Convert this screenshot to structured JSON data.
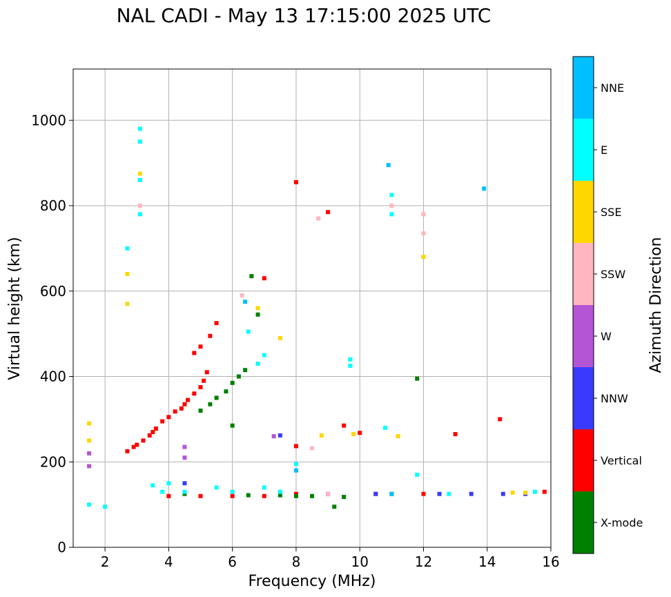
{
  "chart_data": {
    "type": "scatter",
    "title": "NAL CADI - May 13 17:15:00 2025 UTC",
    "xlabel": "Frequency (MHz)",
    "ylabel": "Virtual height (km)",
    "xlim": [
      1,
      16
    ],
    "ylim": [
      0,
      1120
    ],
    "xticks": [
      2,
      4,
      6,
      8,
      10,
      12,
      14,
      16
    ],
    "yticks": [
      0,
      200,
      400,
      600,
      800,
      1000
    ],
    "grid": true,
    "colorbar": {
      "label": "Azimuth Direction",
      "categories": [
        {
          "name": "X-mode",
          "color": "#008000"
        },
        {
          "name": "Vertical",
          "color": "#ff0000"
        },
        {
          "name": "NNW",
          "color": "#3a3aff"
        },
        {
          "name": "W",
          "color": "#b455d6"
        },
        {
          "name": "SSW",
          "color": "#ffb6c1"
        },
        {
          "name": "SSE",
          "color": "#ffd700"
        },
        {
          "name": "E",
          "color": "#00ffff"
        },
        {
          "name": "NNE",
          "color": "#00bfff"
        }
      ]
    },
    "series": [
      {
        "name": "Vertical",
        "points": [
          [
            2.7,
            225
          ],
          [
            2.9,
            235
          ],
          [
            3.0,
            240
          ],
          [
            3.2,
            250
          ],
          [
            3.4,
            262
          ],
          [
            3.5,
            270
          ],
          [
            3.6,
            278
          ],
          [
            3.8,
            295
          ],
          [
            4.0,
            305
          ],
          [
            4.2,
            318
          ],
          [
            4.4,
            325
          ],
          [
            4.5,
            335
          ],
          [
            4.6,
            345
          ],
          [
            4.8,
            360
          ],
          [
            5.0,
            375
          ],
          [
            5.1,
            390
          ],
          [
            5.2,
            410
          ],
          [
            4.8,
            455
          ],
          [
            5.0,
            470
          ],
          [
            5.3,
            495
          ],
          [
            5.5,
            525
          ],
          [
            4.0,
            120
          ],
          [
            5.0,
            120
          ],
          [
            6.0,
            120
          ],
          [
            7.0,
            120
          ],
          [
            8.0,
            125
          ],
          [
            10.5,
            125
          ],
          [
            12.0,
            125
          ],
          [
            13.0,
            265
          ],
          [
            14.4,
            300
          ],
          [
            15.8,
            130
          ],
          [
            9.0,
            785
          ],
          [
            8.0,
            855
          ],
          [
            7.0,
            630
          ],
          [
            9.5,
            285
          ],
          [
            8.0,
            237
          ],
          [
            10.0,
            268
          ]
        ]
      },
      {
        "name": "X-mode",
        "points": [
          [
            5.0,
            320
          ],
          [
            5.3,
            335
          ],
          [
            5.5,
            350
          ],
          [
            5.8,
            365
          ],
          [
            6.0,
            385
          ],
          [
            6.2,
            400
          ],
          [
            6.4,
            415
          ],
          [
            6.6,
            635
          ],
          [
            6.8,
            545
          ],
          [
            4.5,
            125
          ],
          [
            6.5,
            122
          ],
          [
            7.5,
            122
          ],
          [
            8.5,
            120
          ],
          [
            9.5,
            118
          ],
          [
            11.0,
            125
          ],
          [
            6.0,
            285
          ],
          [
            9.2,
            95
          ],
          [
            11.8,
            395
          ],
          [
            8.0,
            120
          ],
          [
            9.0,
            125
          ]
        ]
      },
      {
        "name": "NNW",
        "points": [
          [
            7.5,
            262
          ],
          [
            10.5,
            125
          ],
          [
            12.5,
            125
          ],
          [
            13.5,
            125
          ],
          [
            14.5,
            125
          ],
          [
            15.2,
            125
          ],
          [
            9.0,
            125
          ],
          [
            4.5,
            150
          ]
        ]
      },
      {
        "name": "W",
        "points": [
          [
            1.5,
            190
          ],
          [
            1.5,
            220
          ],
          [
            4.5,
            210
          ],
          [
            4.5,
            235
          ],
          [
            7.3,
            260
          ]
        ]
      },
      {
        "name": "SSW",
        "points": [
          [
            8.7,
            770
          ],
          [
            12.0,
            780
          ],
          [
            12.0,
            735
          ],
          [
            6.3,
            590
          ],
          [
            3.1,
            800
          ],
          [
            9.0,
            125
          ],
          [
            11.0,
            800
          ],
          [
            8.5,
            232
          ]
        ]
      },
      {
        "name": "SSE",
        "points": [
          [
            1.5,
            250
          ],
          [
            1.5,
            290
          ],
          [
            2.7,
            570
          ],
          [
            2.7,
            640
          ],
          [
            3.1,
            875
          ],
          [
            12.0,
            680
          ],
          [
            11.2,
            260
          ],
          [
            14.8,
            128
          ],
          [
            15.2,
            128
          ],
          [
            6.8,
            560
          ],
          [
            7.5,
            490
          ],
          [
            8.8,
            262
          ],
          [
            9.8,
            265
          ]
        ]
      },
      {
        "name": "E",
        "points": [
          [
            1.5,
            100
          ],
          [
            2.0,
            95
          ],
          [
            3.1,
            780
          ],
          [
            3.1,
            860
          ],
          [
            3.1,
            950
          ],
          [
            3.1,
            980
          ],
          [
            3.5,
            145
          ],
          [
            3.8,
            130
          ],
          [
            4.0,
            150
          ],
          [
            4.5,
            130
          ],
          [
            5.5,
            140
          ],
          [
            6.0,
            130
          ],
          [
            7.0,
            140
          ],
          [
            7.5,
            130
          ],
          [
            9.7,
            440
          ],
          [
            9.7,
            425
          ],
          [
            11.0,
            825
          ],
          [
            11.0,
            780
          ],
          [
            10.8,
            280
          ],
          [
            11.8,
            170
          ],
          [
            12.8,
            125
          ],
          [
            15.5,
            130
          ],
          [
            6.5,
            505
          ],
          [
            7.0,
            450
          ],
          [
            2.7,
            700
          ],
          [
            8.0,
            195
          ],
          [
            6.8,
            430
          ]
        ]
      },
      {
        "name": "NNE",
        "points": [
          [
            10.9,
            895
          ],
          [
            13.9,
            840
          ],
          [
            8.0,
            180
          ],
          [
            11.0,
            125
          ],
          [
            6.4,
            575
          ]
        ]
      }
    ]
  }
}
